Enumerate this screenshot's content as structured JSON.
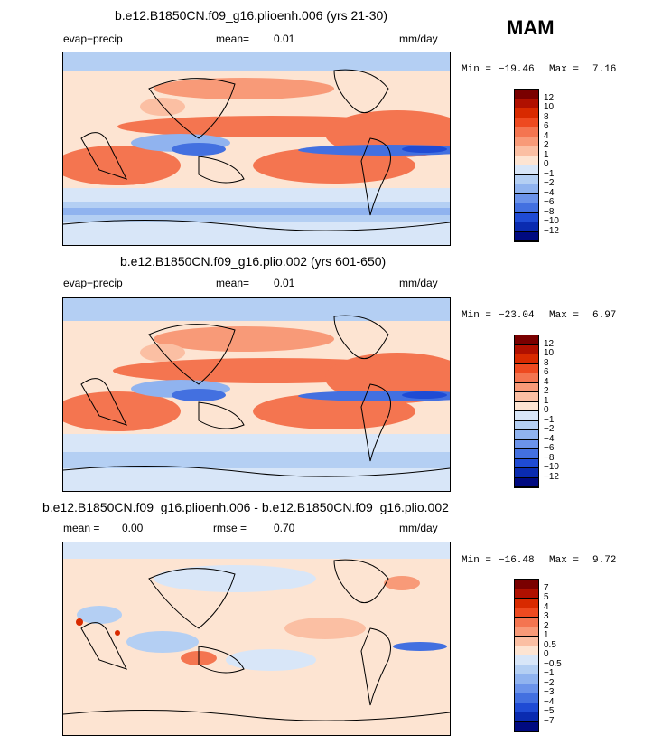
{
  "season": "MAM",
  "panels": [
    {
      "title": "b.e12.B1850CN.f09_g16.plioenh.006 (yrs 21-30)",
      "left_label": "evap−precip",
      "stat_label": "mean=",
      "stat_value": "0.01",
      "units": "mm/day",
      "min_label": "Min = ",
      "min_value": "−19.46",
      "max_label": "Max = ",
      "max_value": "7.16",
      "colorbar": {
        "colors": [
          "#7a0000",
          "#b01000",
          "#d82a00",
          "#ee4a20",
          "#f47550",
          "#f89a78",
          "#fbbfa3",
          "#fde4d2",
          "#d8e6f8",
          "#b4cff3",
          "#90b3ef",
          "#6b93ea",
          "#4370e0",
          "#1f4bd4",
          "#0a2bb0",
          "#000a80"
        ],
        "labels": [
          "12",
          "10",
          "8",
          "6",
          "4",
          "2",
          "1",
          "0",
          "−1",
          "−2",
          "−4",
          "−6",
          "−8",
          "−10",
          "−12"
        ]
      }
    },
    {
      "title": "b.e12.B1850CN.f09_g16.plio.002 (yrs 601-650)",
      "left_label": "evap−precip",
      "stat_label": "mean=",
      "stat_value": "0.01",
      "units": "mm/day",
      "min_label": "Min = ",
      "min_value": "−23.04",
      "max_label": "Max = ",
      "max_value": "6.97",
      "colorbar": {
        "colors": [
          "#7a0000",
          "#b01000",
          "#d82a00",
          "#ee4a20",
          "#f47550",
          "#f89a78",
          "#fbbfa3",
          "#fde4d2",
          "#d8e6f8",
          "#b4cff3",
          "#90b3ef",
          "#6b93ea",
          "#4370e0",
          "#1f4bd4",
          "#0a2bb0",
          "#000a80"
        ],
        "labels": [
          "12",
          "10",
          "8",
          "6",
          "4",
          "2",
          "1",
          "0",
          "−1",
          "−2",
          "−4",
          "−6",
          "−8",
          "−10",
          "−12"
        ]
      }
    },
    {
      "title": "b.e12.B1850CN.f09_g16.plioenh.006 - b.e12.B1850CN.f09_g16.plio.002",
      "left_label": "mean =",
      "left_value": "0.00",
      "stat_label": "rmse =",
      "stat_value": "0.70",
      "units": "mm/day",
      "min_label": "Min = ",
      "min_value": "−16.48",
      "max_label": "Max = ",
      "max_value": "9.72",
      "colorbar": {
        "colors": [
          "#7a0000",
          "#b01000",
          "#d82a00",
          "#ee4a20",
          "#f47550",
          "#f89a78",
          "#fbbfa3",
          "#fde4d2",
          "#d8e6f8",
          "#b4cff3",
          "#90b3ef",
          "#6b93ea",
          "#4370e0",
          "#1f4bd4",
          "#0a2bb0",
          "#000a80"
        ],
        "labels": [
          "7",
          "5",
          "4",
          "3",
          "2",
          "1",
          "0.5",
          "0",
          "−0.5",
          "−1",
          "−2",
          "−3",
          "−4",
          "−5",
          "−7"
        ]
      }
    }
  ]
}
